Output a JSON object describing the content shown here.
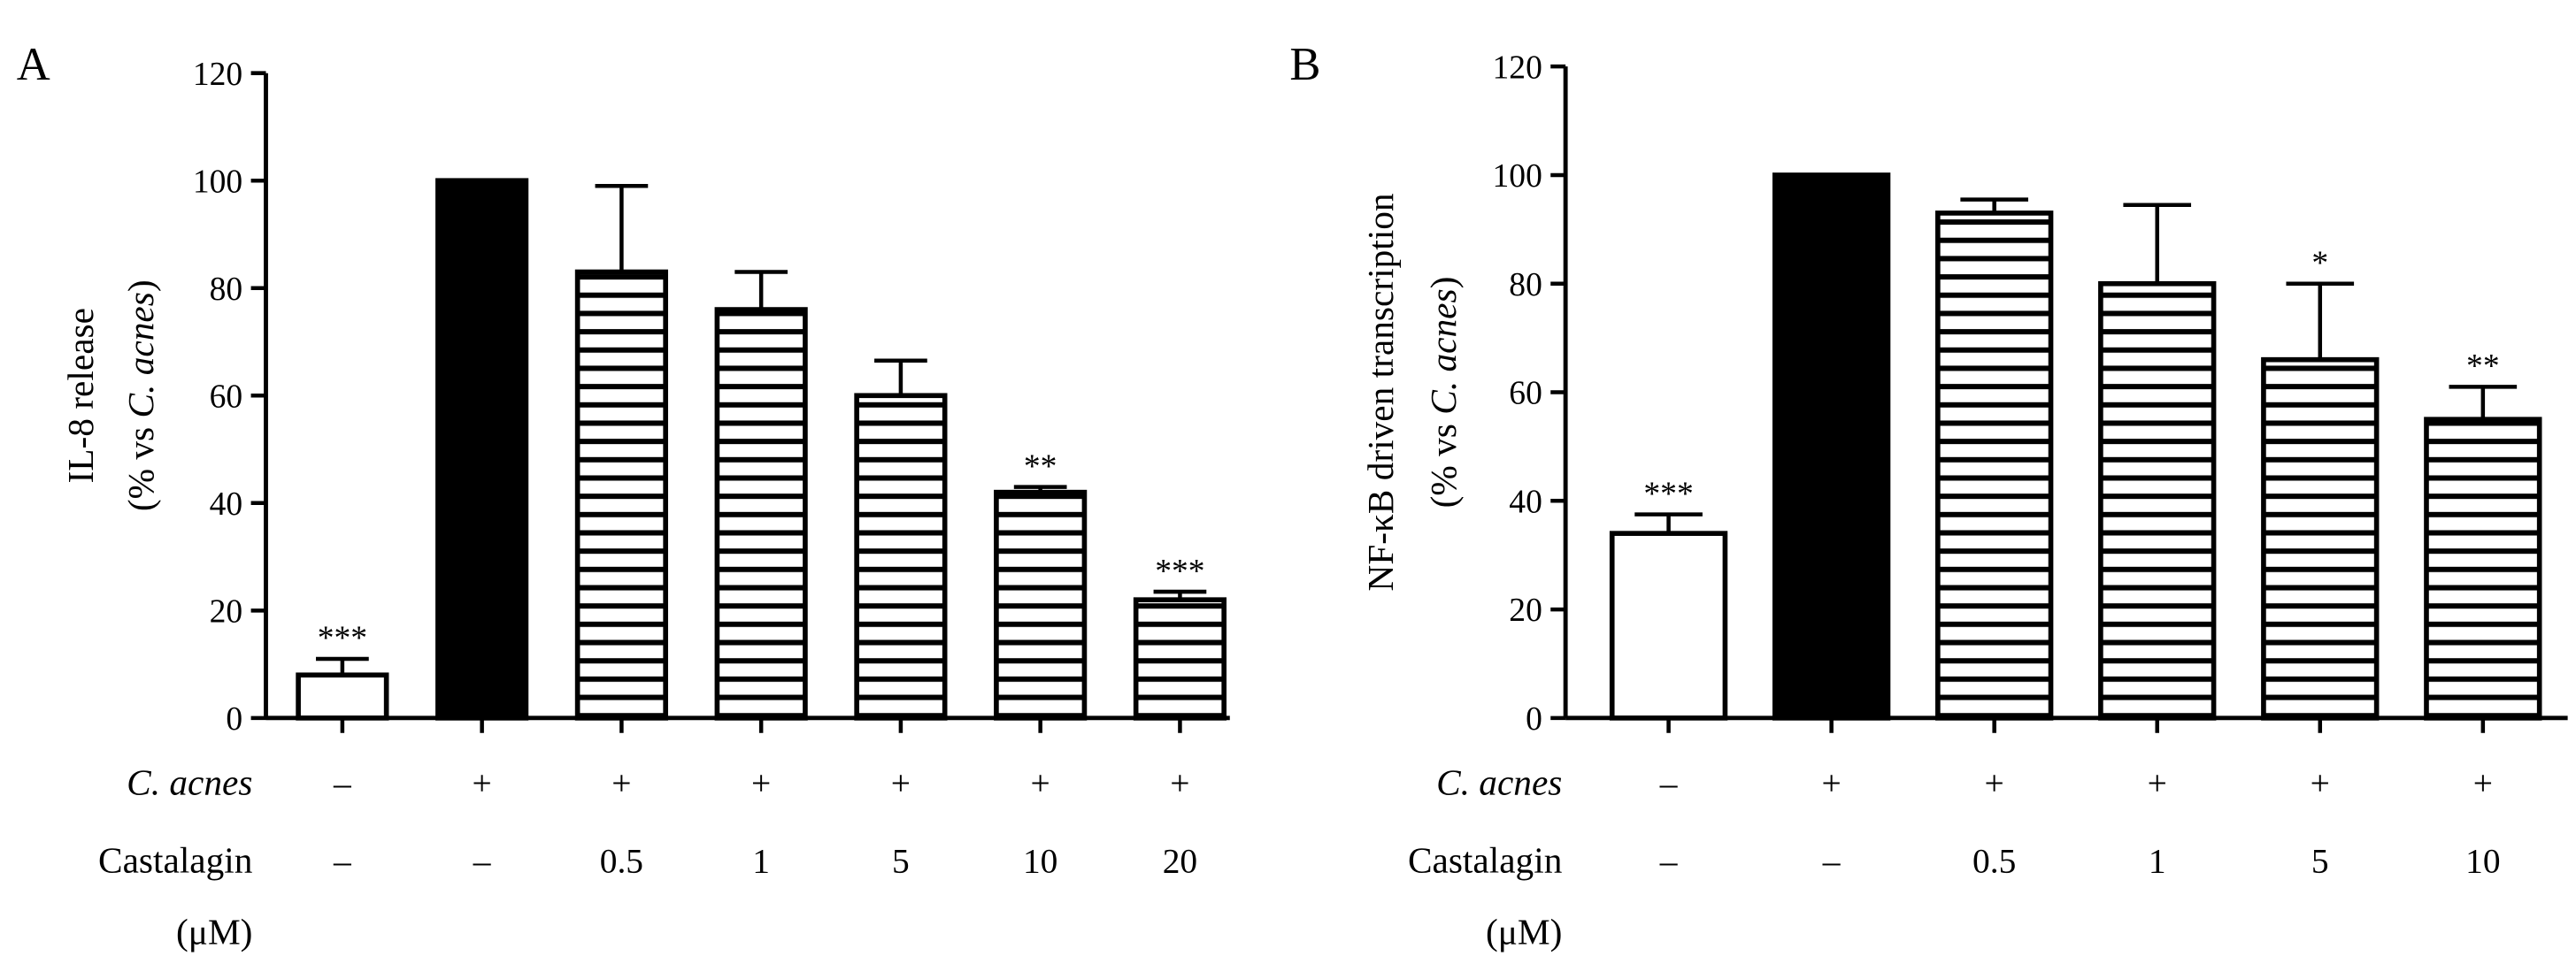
{
  "chart_data": [
    {
      "type": "bar",
      "panel": "A",
      "title": "",
      "ylabel": "IL-8 release",
      "ylabel_line2": "(% vs C. acnes)",
      "ylim": [
        0,
        120
      ],
      "yticks": [
        0,
        20,
        40,
        60,
        80,
        100,
        120
      ],
      "row_labels": {
        "treatment": "C. acnes",
        "dose": "Castalagin",
        "dose_unit": "(μM)"
      },
      "categories": [
        {
          "treatment": "–",
          "dose": "–"
        },
        {
          "treatment": "+",
          "dose": "–"
        },
        {
          "treatment": "+",
          "dose": "0.5"
        },
        {
          "treatment": "+",
          "dose": "1"
        },
        {
          "treatment": "+",
          "dose": "5"
        },
        {
          "treatment": "+",
          "dose": "10"
        },
        {
          "treatment": "+",
          "dose": "20"
        }
      ],
      "values": [
        8,
        100,
        83,
        76,
        60,
        42,
        22
      ],
      "errors": [
        3,
        0,
        16,
        7,
        6.5,
        1,
        1.5
      ],
      "significance": [
        "***",
        "",
        "",
        "",
        "",
        "**",
        "***"
      ],
      "fills": [
        "open",
        "solid",
        "striped",
        "striped",
        "striped",
        "striped",
        "striped"
      ]
    },
    {
      "type": "bar",
      "panel": "B",
      "title": "",
      "ylabel": "NF-κB driven transcription",
      "ylabel_line2": "(% vs C. acnes)",
      "ylim": [
        0,
        120
      ],
      "yticks": [
        0,
        20,
        40,
        60,
        80,
        100,
        120
      ],
      "row_labels": {
        "treatment": "C. acnes",
        "dose": "Castalagin",
        "dose_unit": "(μM)"
      },
      "categories": [
        {
          "treatment": "–",
          "dose": "–"
        },
        {
          "treatment": "+",
          "dose": "–"
        },
        {
          "treatment": "+",
          "dose": "0.5"
        },
        {
          "treatment": "+",
          "dose": "1"
        },
        {
          "treatment": "+",
          "dose": "5"
        },
        {
          "treatment": "+",
          "dose": "10"
        }
      ],
      "values": [
        34,
        100,
        93,
        80,
        66,
        55
      ],
      "errors": [
        3.5,
        0,
        2.5,
        14.5,
        14,
        6
      ],
      "significance": [
        "***",
        "",
        "",
        "",
        "*",
        "**"
      ],
      "fills": [
        "open",
        "solid",
        "striped",
        "striped",
        "striped",
        "striped"
      ]
    }
  ]
}
